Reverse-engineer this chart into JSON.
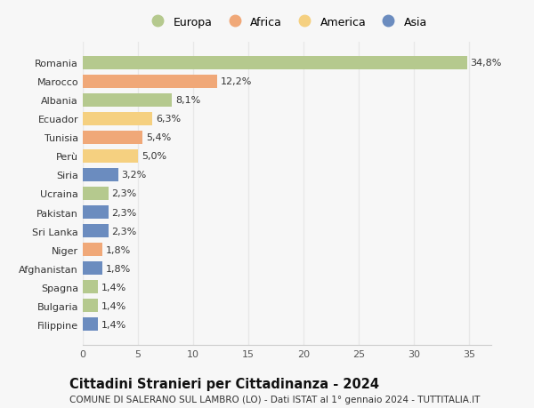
{
  "categories": [
    "Romania",
    "Marocco",
    "Albania",
    "Ecuador",
    "Tunisia",
    "Perù",
    "Siria",
    "Ucraina",
    "Pakistan",
    "Sri Lanka",
    "Niger",
    "Afghanistan",
    "Spagna",
    "Bulgaria",
    "Filippine"
  ],
  "values": [
    34.8,
    12.2,
    8.1,
    6.3,
    5.4,
    5.0,
    3.2,
    2.3,
    2.3,
    2.3,
    1.8,
    1.8,
    1.4,
    1.4,
    1.4
  ],
  "labels": [
    "34,8%",
    "12,2%",
    "8,1%",
    "6,3%",
    "5,4%",
    "5,0%",
    "3,2%",
    "2,3%",
    "2,3%",
    "2,3%",
    "1,8%",
    "1,8%",
    "1,4%",
    "1,4%",
    "1,4%"
  ],
  "colors": [
    "#b5c98e",
    "#f0a878",
    "#b5c98e",
    "#f5d080",
    "#f0a878",
    "#f5d080",
    "#6b8cbf",
    "#b5c98e",
    "#6b8cbf",
    "#6b8cbf",
    "#f0a878",
    "#6b8cbf",
    "#b5c98e",
    "#b5c98e",
    "#6b8cbf"
  ],
  "legend_labels": [
    "Europa",
    "Africa",
    "America",
    "Asia"
  ],
  "legend_colors": [
    "#b5c98e",
    "#f0a878",
    "#f5d080",
    "#6b8cbf"
  ],
  "title": "Cittadini Stranieri per Cittadinanza - 2024",
  "subtitle": "COMUNE DI SALERANO SUL LAMBRO (LO) - Dati ISTAT al 1° gennaio 2024 - TUTTITALIA.IT",
  "xlim": [
    0,
    37
  ],
  "xticks": [
    0,
    5,
    10,
    15,
    20,
    25,
    30,
    35
  ],
  "background_color": "#f7f7f7",
  "grid_color": "#e8e8e8",
  "bar_height": 0.72,
  "title_fontsize": 10.5,
  "subtitle_fontsize": 7.5,
  "tick_fontsize": 8,
  "label_fontsize": 8
}
